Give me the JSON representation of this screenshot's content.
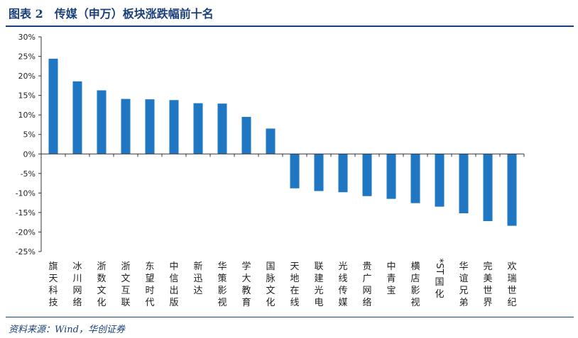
{
  "title": "图表 2　传媒（申万）板块涨跌幅前十名",
  "source": "资料来源：Wind，华创证券",
  "colors": {
    "bar": "#1f77c4",
    "title": "#1a3f7a",
    "axis": "#333333"
  },
  "chart_data": {
    "type": "bar",
    "title": "",
    "xlabel": "",
    "ylabel": "",
    "ylim": [
      -25,
      30
    ],
    "yticks": [
      "30%",
      "25%",
      "20%",
      "15%",
      "10%",
      "5%",
      "0%",
      "-5%",
      "-10%",
      "-15%",
      "-20%",
      "-25%"
    ],
    "categories": [
      "旗天科技",
      "冰川网络",
      "浙数文化",
      "浙文互联",
      "东望时代",
      "中信出版",
      "新迅达",
      "华策影视",
      "学大教育",
      "国脉文化",
      "天地在线",
      "联建光电",
      "光线传媒",
      "贵广网络",
      "中青宝",
      "横店影视",
      "*ST国化",
      "华谊兄弟",
      "完美世界",
      "欢瑞世纪"
    ],
    "values": [
      24.4,
      18.6,
      16.3,
      14.1,
      14.0,
      13.8,
      13.0,
      12.9,
      9.5,
      6.5,
      -8.8,
      -9.5,
      -9.8,
      -10.8,
      -11.5,
      -12.6,
      -13.5,
      -15.2,
      -17.2,
      -18.4
    ],
    "grid": false,
    "legend": "none"
  }
}
